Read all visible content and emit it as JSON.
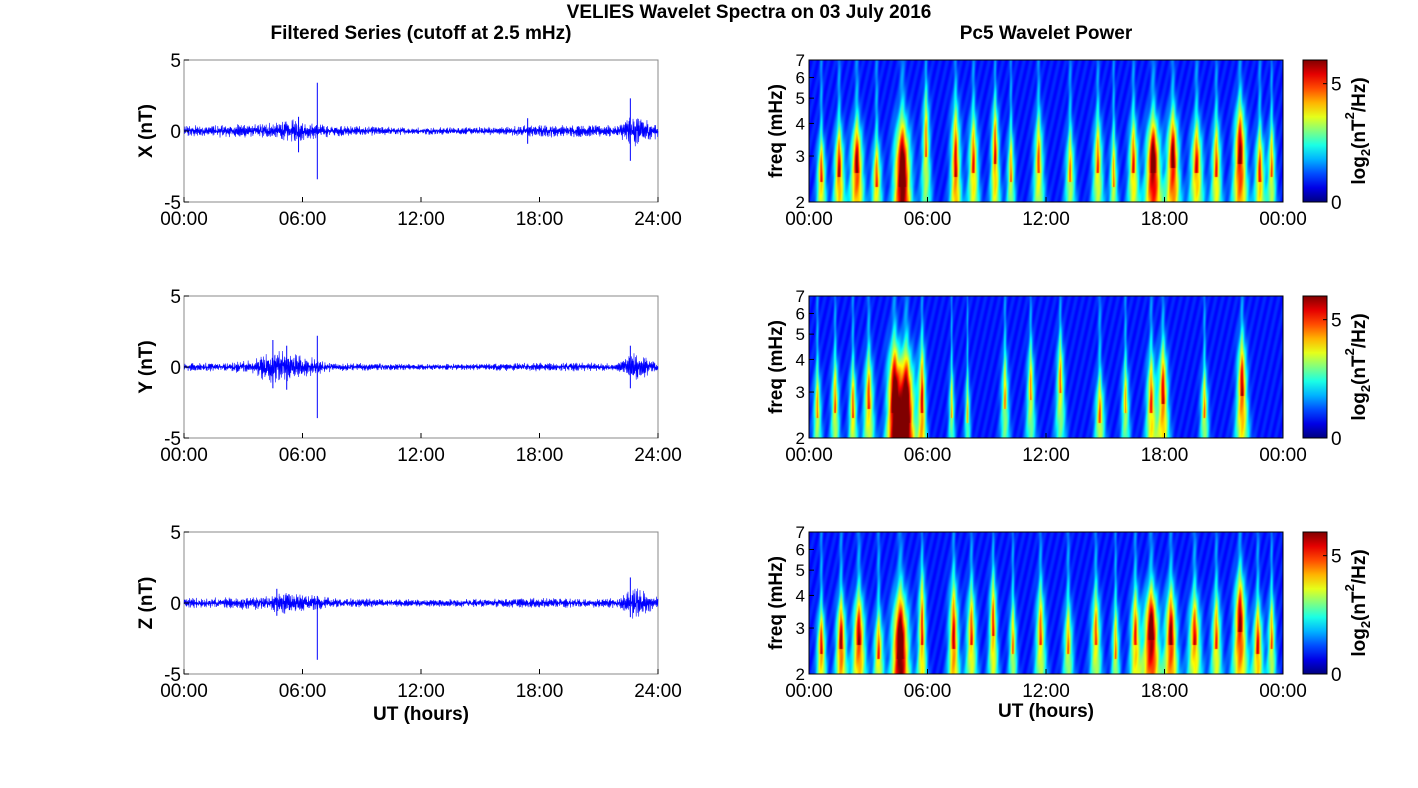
{
  "figure": {
    "suptitle": "VELIES Wavelet Spectra on 03 July 2016",
    "left_title": "Filtered Series (cutoff at 2.5 mHz)",
    "right_title": "Pc5 Wavelet Power"
  },
  "chart_data": [
    {
      "id": "x-series",
      "type": "line",
      "component": "X",
      "ylabel": "X (nT)",
      "xlabel": "",
      "xlim": [
        0,
        24
      ],
      "ylim": [
        -5,
        5
      ],
      "xticks": [
        "00:00",
        "06:00",
        "12:00",
        "18:00",
        "24:00"
      ],
      "yticks": [
        "-5",
        "0",
        "5"
      ],
      "series_color": "#0000ff",
      "envelope": [
        {
          "x": 0,
          "amp": 0.4
        },
        {
          "x": 2,
          "amp": 0.45
        },
        {
          "x": 4,
          "amp": 0.55
        },
        {
          "x": 5.5,
          "amp": 0.8
        },
        {
          "x": 7.5,
          "amp": 0.4
        },
        {
          "x": 12,
          "amp": 0.25
        },
        {
          "x": 16,
          "amp": 0.3
        },
        {
          "x": 18,
          "amp": 0.45
        },
        {
          "x": 22,
          "amp": 0.4
        },
        {
          "x": 22.7,
          "amp": 1.2
        },
        {
          "x": 24,
          "amp": 0.5
        }
      ],
      "spikes": [
        {
          "x": 5.8,
          "min": -1.5,
          "max": 1.0
        },
        {
          "x": 6.75,
          "min": -3.4,
          "max": 3.4
        },
        {
          "x": 17.4,
          "min": -0.9,
          "max": 0.9
        },
        {
          "x": 22.6,
          "min": -2.1,
          "max": 2.3
        }
      ]
    },
    {
      "id": "y-series",
      "type": "line",
      "component": "Y",
      "ylabel": "Y (nT)",
      "xlabel": "",
      "xlim": [
        0,
        24
      ],
      "ylim": [
        -5,
        5
      ],
      "xticks": [
        "00:00",
        "06:00",
        "12:00",
        "18:00",
        "24:00"
      ],
      "yticks": [
        "-5",
        "0",
        "5"
      ],
      "series_color": "#0000ff",
      "envelope": [
        {
          "x": 0,
          "amp": 0.3
        },
        {
          "x": 2,
          "amp": 0.3
        },
        {
          "x": 3.5,
          "amp": 0.5
        },
        {
          "x": 4.5,
          "amp": 1.3
        },
        {
          "x": 5.5,
          "amp": 1.0
        },
        {
          "x": 7.5,
          "amp": 0.3
        },
        {
          "x": 12,
          "amp": 0.2
        },
        {
          "x": 18,
          "amp": 0.3
        },
        {
          "x": 22,
          "amp": 0.3
        },
        {
          "x": 22.7,
          "amp": 1.2
        },
        {
          "x": 24,
          "amp": 0.3
        }
      ],
      "spikes": [
        {
          "x": 4.5,
          "min": -1.5,
          "max": 1.9
        },
        {
          "x": 5.2,
          "min": -1.6,
          "max": 1.5
        },
        {
          "x": 6.75,
          "min": -3.6,
          "max": 2.2
        },
        {
          "x": 22.6,
          "min": -1.5,
          "max": 1.5
        }
      ]
    },
    {
      "id": "z-series",
      "type": "line",
      "component": "Z",
      "ylabel": "Z (nT)",
      "xlabel": "UT (hours)",
      "xlim": [
        0,
        24
      ],
      "ylim": [
        -5,
        5
      ],
      "xticks": [
        "00:00",
        "06:00",
        "12:00",
        "18:00",
        "24:00"
      ],
      "yticks": [
        "-5",
        "0",
        "5"
      ],
      "series_color": "#0000ff",
      "envelope": [
        {
          "x": 0,
          "amp": 0.35
        },
        {
          "x": 2,
          "amp": 0.4
        },
        {
          "x": 4,
          "amp": 0.5
        },
        {
          "x": 5,
          "amp": 0.8
        },
        {
          "x": 7.5,
          "amp": 0.35
        },
        {
          "x": 12,
          "amp": 0.25
        },
        {
          "x": 18,
          "amp": 0.35
        },
        {
          "x": 22,
          "amp": 0.35
        },
        {
          "x": 22.7,
          "amp": 1.2
        },
        {
          "x": 24,
          "amp": 0.4
        }
      ],
      "spikes": [
        {
          "x": 4.7,
          "min": -0.9,
          "max": 1.0
        },
        {
          "x": 6.75,
          "min": -4.0,
          "max": 0.5
        },
        {
          "x": 22.6,
          "min": -1.0,
          "max": 1.8
        }
      ]
    },
    {
      "id": "x-wavelet",
      "type": "heatmap",
      "component": "X",
      "ylabel": "freq (mHz)",
      "xlabel": "",
      "xlim": [
        0,
        24
      ],
      "ylim": [
        2,
        7
      ],
      "yscale": "log",
      "xticks": [
        "00:00",
        "06:00",
        "12:00",
        "18:00",
        "00:00"
      ],
      "yticks": [
        "2",
        "3",
        "4",
        "5",
        "6",
        "7"
      ],
      "colorbar": {
        "label_main": "log",
        "label_sub": "2",
        "label_rest": "(nT",
        "label_sup": "2",
        "label_end": "/Hz)",
        "ticks": [
          "0",
          "5"
        ],
        "range": [
          0,
          6
        ],
        "colormap": "jet"
      },
      "blobs": [
        {
          "t": 0.6,
          "f": 2.4,
          "h": 2.0,
          "w": 0.22,
          "v": 3.5
        },
        {
          "t": 1.5,
          "f": 2.5,
          "h": 2.5,
          "w": 0.25,
          "v": 4.0
        },
        {
          "t": 2.4,
          "f": 2.6,
          "h": 2.6,
          "w": 0.3,
          "v": 4.5
        },
        {
          "t": 3.4,
          "f": 2.3,
          "h": 2.0,
          "w": 0.25,
          "v": 3.3
        },
        {
          "t": 4.7,
          "f": 2.3,
          "h": 3.2,
          "w": 0.4,
          "v": 6.0
        },
        {
          "t": 5.9,
          "f": 3.0,
          "h": 4.0,
          "w": 0.2,
          "v": 3.0
        },
        {
          "t": 7.4,
          "f": 2.5,
          "h": 3.8,
          "w": 0.25,
          "v": 4.0
        },
        {
          "t": 8.3,
          "f": 2.6,
          "h": 3.0,
          "w": 0.25,
          "v": 3.5
        },
        {
          "t": 9.4,
          "f": 2.8,
          "h": 3.4,
          "w": 0.2,
          "v": 3.8
        },
        {
          "t": 10.2,
          "f": 2.4,
          "h": 2.4,
          "w": 0.2,
          "v": 2.8
        },
        {
          "t": 11.6,
          "f": 2.6,
          "h": 3.0,
          "w": 0.25,
          "v": 3.2
        },
        {
          "t": 13.2,
          "f": 2.4,
          "h": 2.4,
          "w": 0.25,
          "v": 2.8
        },
        {
          "t": 14.6,
          "f": 2.6,
          "h": 2.8,
          "w": 0.25,
          "v": 3.2
        },
        {
          "t": 15.4,
          "f": 2.3,
          "h": 2.4,
          "w": 0.2,
          "v": 2.8
        },
        {
          "t": 16.4,
          "f": 2.6,
          "h": 2.8,
          "w": 0.25,
          "v": 3.5
        },
        {
          "t": 17.4,
          "f": 2.6,
          "h": 2.8,
          "w": 0.35,
          "v": 5.5
        },
        {
          "t": 18.4,
          "f": 2.7,
          "h": 3.0,
          "w": 0.3,
          "v": 4.8
        },
        {
          "t": 19.6,
          "f": 2.6,
          "h": 2.6,
          "w": 0.3,
          "v": 3.8
        },
        {
          "t": 20.6,
          "f": 2.5,
          "h": 2.8,
          "w": 0.25,
          "v": 3.4
        },
        {
          "t": 21.8,
          "f": 2.8,
          "h": 3.4,
          "w": 0.3,
          "v": 4.8
        },
        {
          "t": 22.8,
          "f": 2.4,
          "h": 2.4,
          "w": 0.25,
          "v": 3.6
        },
        {
          "t": 23.4,
          "f": 2.5,
          "h": 2.6,
          "w": 0.2,
          "v": 3.0
        }
      ]
    },
    {
      "id": "y-wavelet",
      "type": "heatmap",
      "component": "Y",
      "ylabel": "freq (mHz)",
      "xlabel": "",
      "xlim": [
        0,
        24
      ],
      "ylim": [
        2,
        7
      ],
      "yscale": "log",
      "xticks": [
        "00:00",
        "06:00",
        "12:00",
        "18:00",
        "00:00"
      ],
      "yticks": [
        "2",
        "3",
        "4",
        "5",
        "6",
        "7"
      ],
      "colorbar": {
        "label_main": "log",
        "label_sub": "2",
        "label_rest": "(nT",
        "label_sup": "2",
        "label_end": "/Hz)",
        "ticks": [
          "0",
          "5"
        ],
        "range": [
          0,
          6
        ],
        "colormap": "jet"
      },
      "blobs": [
        {
          "t": 0.4,
          "f": 2.4,
          "h": 2.2,
          "w": 0.2,
          "v": 2.8
        },
        {
          "t": 1.3,
          "f": 2.5,
          "h": 2.6,
          "w": 0.2,
          "v": 3.0
        },
        {
          "t": 2.2,
          "f": 2.4,
          "h": 2.4,
          "w": 0.2,
          "v": 3.2
        },
        {
          "t": 3.0,
          "f": 2.6,
          "h": 2.8,
          "w": 0.25,
          "v": 3.4
        },
        {
          "t": 4.3,
          "f": 2.5,
          "h": 3.6,
          "w": 0.35,
          "v": 5.5
        },
        {
          "t": 4.9,
          "f": 2.3,
          "h": 3.4,
          "w": 0.4,
          "v": 6.0
        },
        {
          "t": 5.7,
          "f": 2.5,
          "h": 3.6,
          "w": 0.2,
          "v": 3.8
        },
        {
          "t": 7.2,
          "f": 2.4,
          "h": 2.2,
          "w": 0.15,
          "v": 2.4
        },
        {
          "t": 8.0,
          "f": 2.3,
          "h": 2.0,
          "w": 0.15,
          "v": 2.2
        },
        {
          "t": 9.9,
          "f": 2.6,
          "h": 2.8,
          "w": 0.2,
          "v": 2.6
        },
        {
          "t": 11.2,
          "f": 2.8,
          "h": 3.0,
          "w": 0.2,
          "v": 2.8
        },
        {
          "t": 12.7,
          "f": 3.0,
          "h": 3.2,
          "w": 0.2,
          "v": 3.0
        },
        {
          "t": 14.7,
          "f": 2.3,
          "h": 2.0,
          "w": 0.25,
          "v": 3.0
        },
        {
          "t": 16.0,
          "f": 2.5,
          "h": 2.4,
          "w": 0.2,
          "v": 2.6
        },
        {
          "t": 17.3,
          "f": 2.5,
          "h": 3.0,
          "w": 0.25,
          "v": 3.4
        },
        {
          "t": 17.9,
          "f": 2.7,
          "h": 3.2,
          "w": 0.25,
          "v": 4.0
        },
        {
          "t": 20.0,
          "f": 2.4,
          "h": 2.2,
          "w": 0.2,
          "v": 2.8
        },
        {
          "t": 21.9,
          "f": 2.9,
          "h": 3.4,
          "w": 0.25,
          "v": 4.2
        }
      ]
    },
    {
      "id": "z-wavelet",
      "type": "heatmap",
      "component": "Z",
      "ylabel": "freq (mHz)",
      "xlabel": "UT (hours)",
      "xlim": [
        0,
        24
      ],
      "ylim": [
        2,
        7
      ],
      "yscale": "log",
      "xticks": [
        "00:00",
        "06:00",
        "12:00",
        "18:00",
        "00:00"
      ],
      "yticks": [
        "2",
        "3",
        "4",
        "5",
        "6",
        "7"
      ],
      "colorbar": {
        "label_main": "log",
        "label_sub": "2",
        "label_rest": "(nT",
        "label_sup": "2",
        "label_end": "/Hz)",
        "ticks": [
          "0",
          "5"
        ],
        "range": [
          0,
          6
        ],
        "colormap": "jet"
      },
      "blobs": [
        {
          "t": 0.6,
          "f": 2.4,
          "h": 2.0,
          "w": 0.22,
          "v": 3.8
        },
        {
          "t": 1.6,
          "f": 2.5,
          "h": 2.5,
          "w": 0.25,
          "v": 4.3
        },
        {
          "t": 2.5,
          "f": 2.6,
          "h": 2.6,
          "w": 0.3,
          "v": 4.4
        },
        {
          "t": 3.5,
          "f": 2.3,
          "h": 2.0,
          "w": 0.25,
          "v": 3.3
        },
        {
          "t": 4.6,
          "f": 2.3,
          "h": 3.2,
          "w": 0.4,
          "v": 6.0
        },
        {
          "t": 5.7,
          "f": 2.6,
          "h": 4.0,
          "w": 0.2,
          "v": 3.6
        },
        {
          "t": 7.3,
          "f": 2.5,
          "h": 3.6,
          "w": 0.25,
          "v": 4.0
        },
        {
          "t": 8.2,
          "f": 2.6,
          "h": 3.0,
          "w": 0.25,
          "v": 3.4
        },
        {
          "t": 9.3,
          "f": 2.8,
          "h": 3.4,
          "w": 0.2,
          "v": 3.6
        },
        {
          "t": 10.3,
          "f": 2.4,
          "h": 2.4,
          "w": 0.2,
          "v": 2.8
        },
        {
          "t": 11.7,
          "f": 2.6,
          "h": 3.0,
          "w": 0.25,
          "v": 3.2
        },
        {
          "t": 13.1,
          "f": 2.4,
          "h": 2.4,
          "w": 0.25,
          "v": 2.8
        },
        {
          "t": 14.5,
          "f": 2.6,
          "h": 2.8,
          "w": 0.25,
          "v": 3.2
        },
        {
          "t": 15.5,
          "f": 2.3,
          "h": 2.4,
          "w": 0.2,
          "v": 2.8
        },
        {
          "t": 16.5,
          "f": 2.6,
          "h": 2.8,
          "w": 0.25,
          "v": 3.5
        },
        {
          "t": 17.3,
          "f": 2.7,
          "h": 2.8,
          "w": 0.35,
          "v": 5.6
        },
        {
          "t": 18.3,
          "f": 2.6,
          "h": 3.0,
          "w": 0.3,
          "v": 4.6
        },
        {
          "t": 19.5,
          "f": 2.6,
          "h": 2.6,
          "w": 0.3,
          "v": 3.8
        },
        {
          "t": 20.6,
          "f": 2.5,
          "h": 2.8,
          "w": 0.25,
          "v": 3.3
        },
        {
          "t": 21.8,
          "f": 2.9,
          "h": 3.4,
          "w": 0.3,
          "v": 4.7
        },
        {
          "t": 22.7,
          "f": 2.4,
          "h": 2.4,
          "w": 0.25,
          "v": 3.8
        },
        {
          "t": 23.4,
          "f": 2.5,
          "h": 2.6,
          "w": 0.2,
          "v": 3.0
        }
      ]
    }
  ]
}
